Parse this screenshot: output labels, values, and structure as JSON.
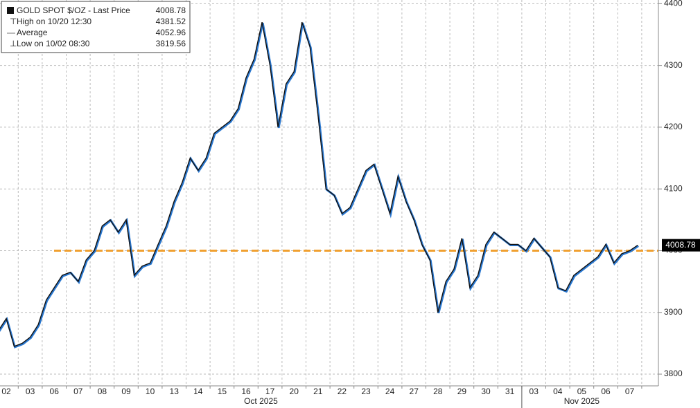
{
  "chart_data": {
    "type": "line",
    "legend": {
      "corner": "top-left",
      "title": "GOLD SPOT $/OZ - Last Price",
      "last": "4008.78",
      "rows": [
        {
          "label": "High on 10/20 12:30",
          "value": "4381.52"
        },
        {
          "label": "Average",
          "value": "4052.96"
        },
        {
          "label": "Low on 10/02 08:30",
          "value": "3819.56"
        }
      ]
    },
    "last_price": {
      "value": 4008.78,
      "label": "4008.78"
    },
    "reference_line": {
      "value": 4000,
      "color": "#f0a030"
    },
    "months": [
      "Oct 2025",
      "Nov 2025"
    ],
    "month_starts": [
      0,
      22
    ],
    "categories": [
      null,
      "02",
      null,
      null,
      "03",
      null,
      null,
      "06",
      null,
      null,
      "07",
      null,
      null,
      "08",
      null,
      null,
      "09",
      null,
      null,
      "10",
      null,
      null,
      "13",
      null,
      null,
      "14",
      null,
      null,
      "15",
      null,
      null,
      "16",
      null,
      null,
      "17",
      null,
      null,
      "20",
      null,
      null,
      "21",
      null,
      null,
      "22",
      null,
      null,
      "23",
      null,
      null,
      "24",
      null,
      null,
      "27",
      null,
      null,
      "28",
      null,
      null,
      "29",
      null,
      null,
      "30",
      null,
      null,
      "31",
      null,
      null,
      "03",
      null,
      null,
      "04",
      null,
      null,
      "05",
      null,
      null,
      "06",
      null,
      null,
      "07",
      null
    ],
    "series": [
      {
        "name": "GOLD SPOT $/OZ",
        "color": "#111111",
        "values": [
          3870,
          3890,
          3845,
          3850,
          3860,
          3880,
          3920,
          3940,
          3960,
          3965,
          3950,
          3985,
          4000,
          4040,
          4050,
          4030,
          4050,
          3960,
          3975,
          3980,
          4010,
          4040,
          4080,
          4110,
          4150,
          4130,
          4150,
          4190,
          4200,
          4210,
          4230,
          4280,
          4310,
          4370,
          4300,
          4200,
          4270,
          4290,
          4370,
          4330,
          4220,
          4100,
          4090,
          4060,
          4070,
          4100,
          4130,
          4140,
          4100,
          4060,
          4120,
          4080,
          4050,
          4010,
          3985,
          3900,
          3950,
          3970,
          4020,
          3940,
          3960,
          4010,
          4030,
          4020,
          4010,
          4010,
          4000,
          4020,
          4005,
          3990,
          3940,
          3935,
          3960,
          3970,
          3980,
          3990,
          4010,
          3980,
          3995,
          4000,
          4008.78
        ]
      }
    ],
    "ylim": [
      3781,
      4406
    ],
    "yticks": [
      3800,
      3900,
      4000,
      4100,
      4200,
      4300,
      4400
    ],
    "grid": true
  }
}
